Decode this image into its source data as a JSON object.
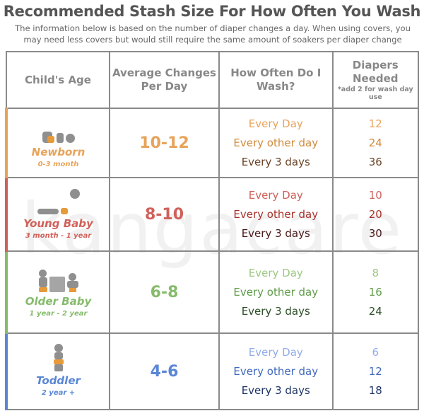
{
  "title": "Recommended Stash Size For How Often You Wash",
  "subtitle": "The information below is based on the number of diaper changes a day. When using covers, you may need less covers but would still require the same amount of soakers per diaper change",
  "watermark": "kangacare",
  "headers": {
    "age": "Child's Age",
    "avg": "Average Changes Per Day",
    "wash": "How Often Do I Wash?",
    "need": "Diapers Needed",
    "need_note": "*add 2 for wash day use"
  },
  "rows": [
    {
      "name": "Newborn",
      "range": "0-3 month",
      "avg": "10-12",
      "icon": "newborn-icon",
      "color": "#e8a35a",
      "wash": [
        "Every Day",
        "Every other day",
        "Every 3 days"
      ],
      "wash_colors": [
        "#e8a35a",
        "#d08a3a",
        "#6a4326"
      ],
      "needed": [
        "12",
        "24",
        "36"
      ]
    },
    {
      "name": "Young Baby",
      "range": "3 month - 1 year",
      "avg": "8-10",
      "icon": "crawling-baby-icon",
      "color": "#d0605a",
      "wash": [
        "Every Day",
        "Every other day",
        "Every 3 days"
      ],
      "wash_colors": [
        "#d0605a",
        "#a8302a",
        "#4a1a1a"
      ],
      "needed": [
        "10",
        "20",
        "30"
      ]
    },
    {
      "name": "Older Baby",
      "range": "1 year - 2 year",
      "avg": "6-8",
      "icon": "older-baby-icon",
      "color": "#86bb6c",
      "wash": [
        "Every Day",
        "Every other day",
        "Every 3 days"
      ],
      "wash_colors": [
        "#9cc880",
        "#5f9a48",
        "#2c4f26"
      ],
      "needed": [
        "8",
        "16",
        "24"
      ]
    },
    {
      "name": "Toddler",
      "range": "2 year +",
      "avg": "4-6",
      "icon": "toddler-icon",
      "color": "#5a86d6",
      "wash": [
        "Every Day",
        "Every other day",
        "Every 3 days"
      ],
      "wash_colors": [
        "#92acea",
        "#3f67bb",
        "#1d3466"
      ],
      "needed": [
        "6",
        "12",
        "18"
      ]
    }
  ]
}
